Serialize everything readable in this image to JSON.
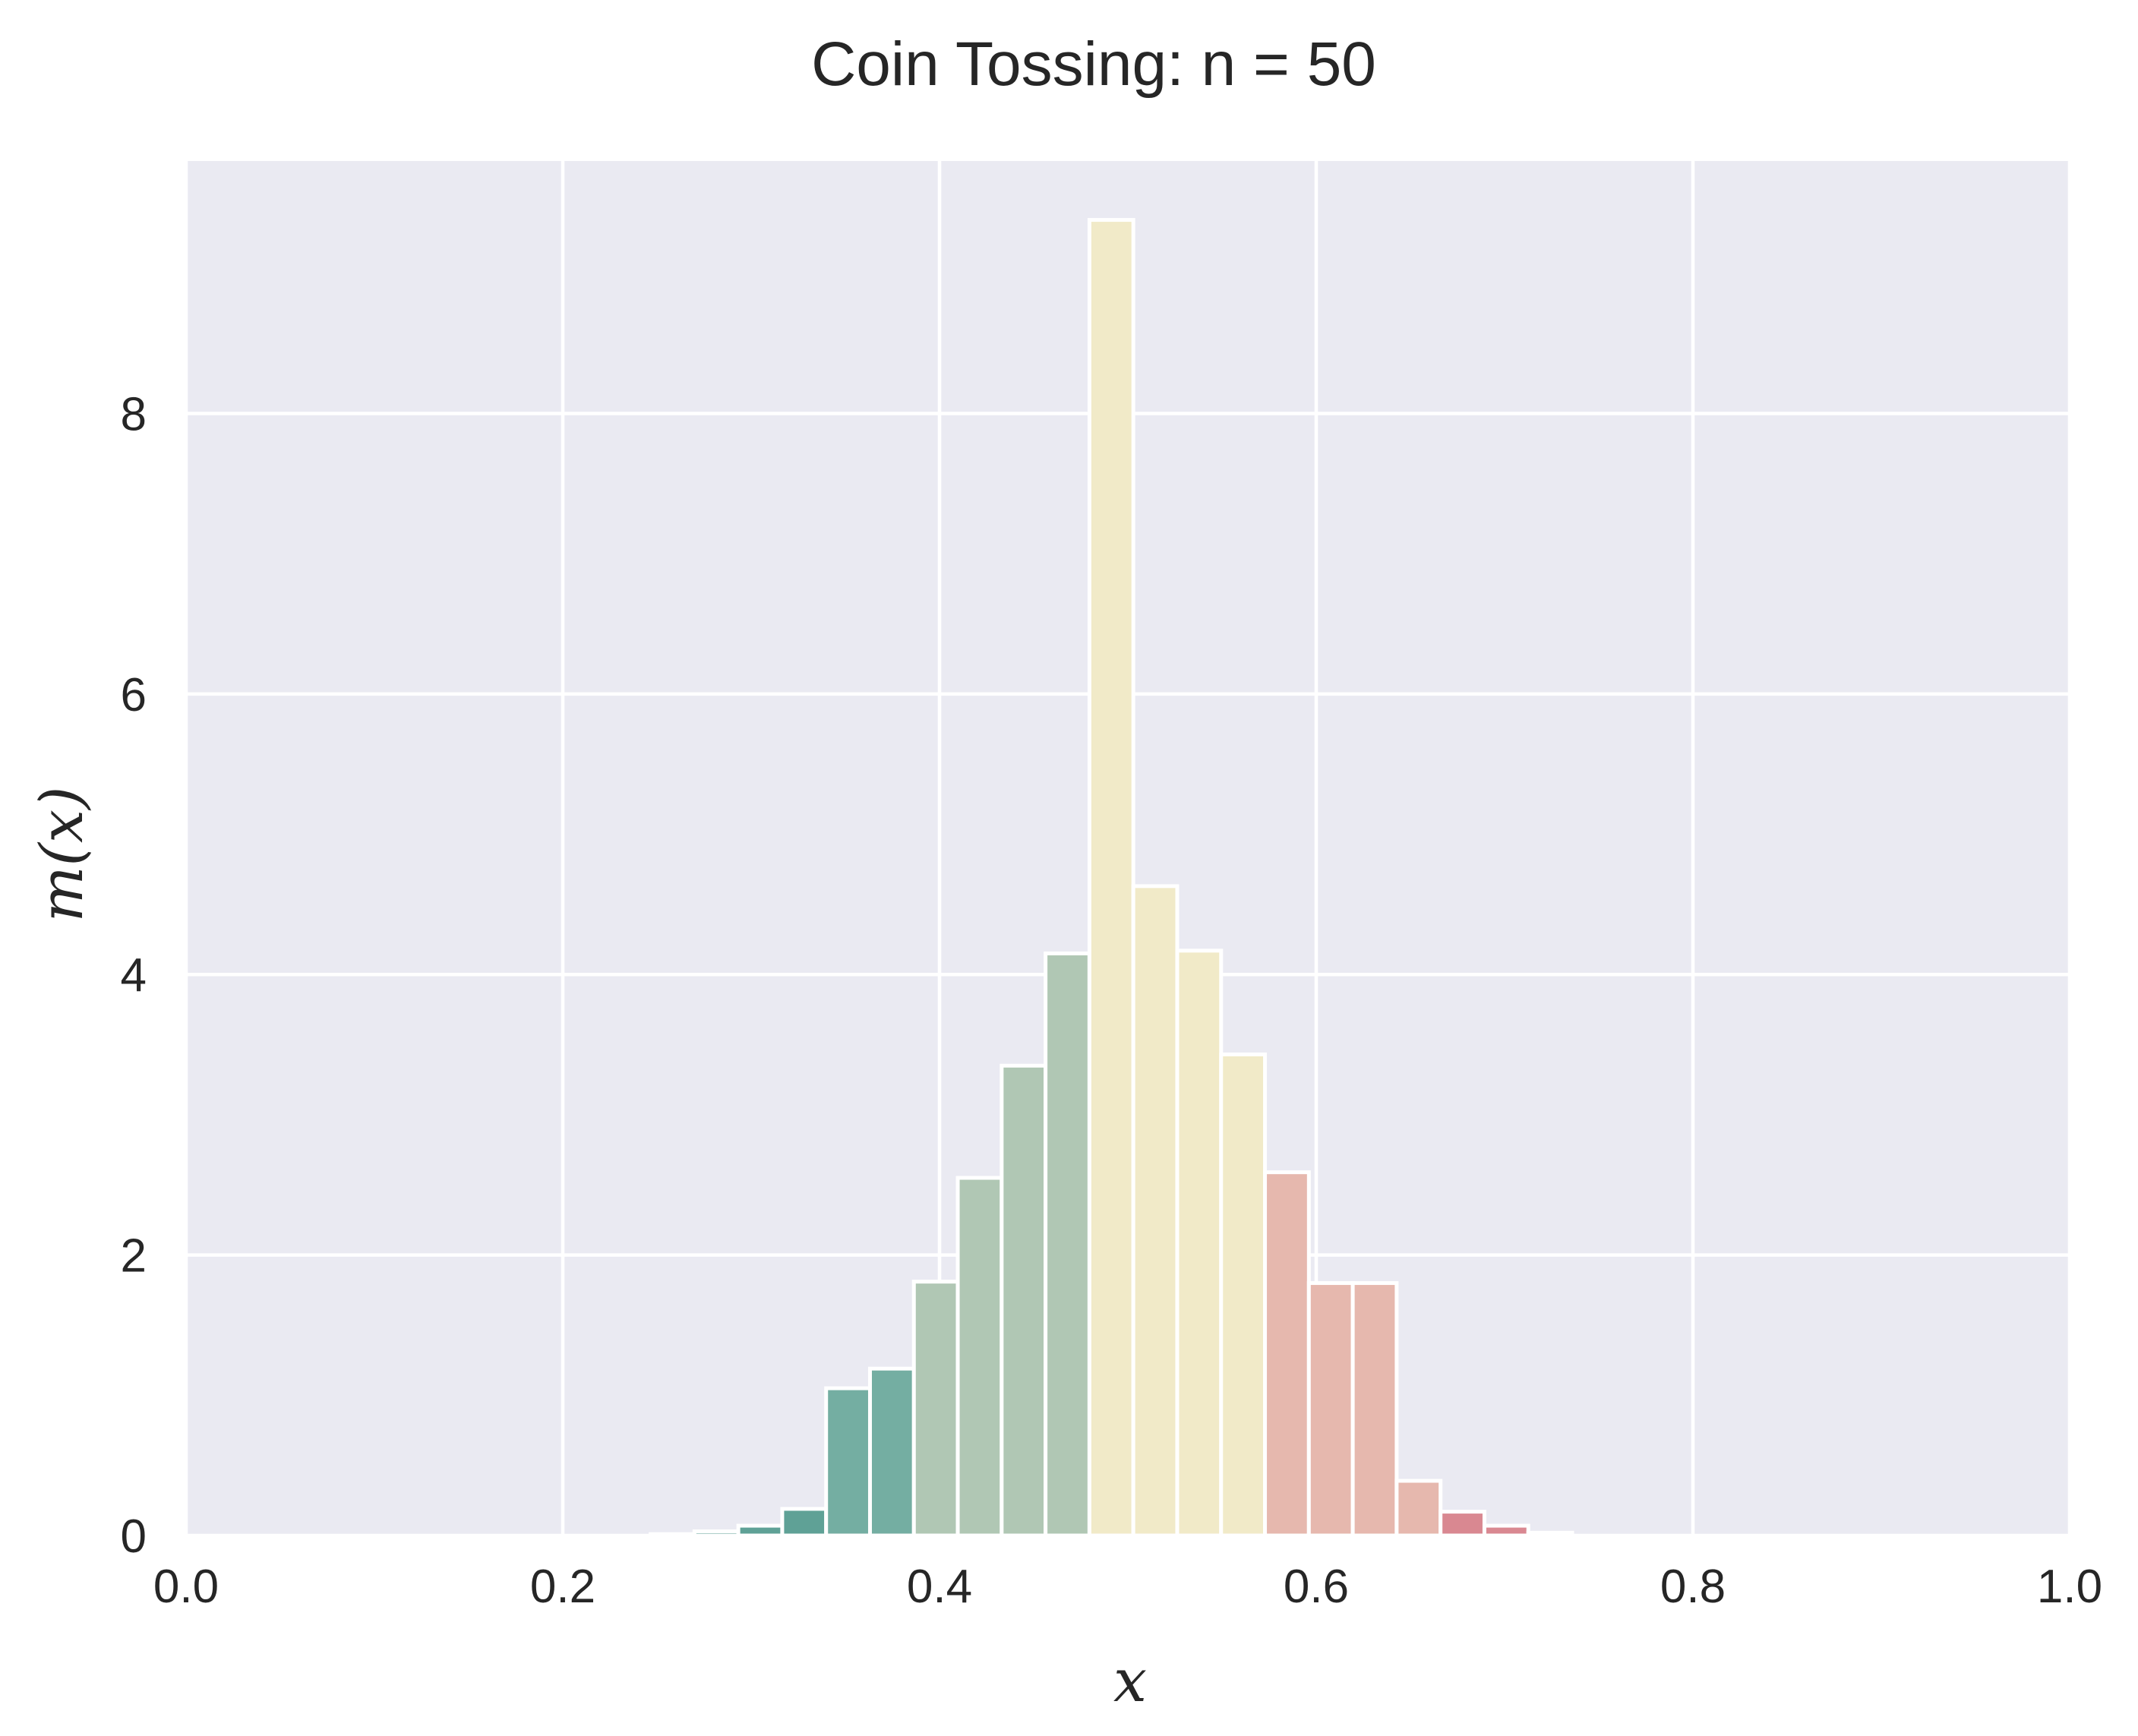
{
  "chart_data": {
    "type": "bar",
    "title": "Coin Tossing: n = 50",
    "xlabel": "x",
    "ylabel": "m(x)",
    "xlim": [
      0.0,
      1.0
    ],
    "ylim": [
      0,
      9.8
    ],
    "xticks": [
      0.0,
      0.2,
      0.4,
      0.6,
      0.8,
      1.0
    ],
    "xtick_labels": [
      "0.0",
      "0.2",
      "0.4",
      "0.6",
      "0.8",
      "1.0"
    ],
    "yticks": [
      0,
      2,
      4,
      6,
      8
    ],
    "ytick_labels": [
      "0",
      "2",
      "4",
      "6",
      "8"
    ],
    "grid": true,
    "background": "#EAEAF2",
    "bin_width": 0.0233,
    "bins": [
      {
        "x0": 0.2233,
        "x1": 0.2466,
        "value": 0.0,
        "color": "#5FA196"
      },
      {
        "x0": 0.2466,
        "x1": 0.2699,
        "value": 0.01,
        "color": "#5FA196"
      },
      {
        "x0": 0.2699,
        "x1": 0.2932,
        "value": 0.03,
        "color": "#5FA196"
      },
      {
        "x0": 0.2932,
        "x1": 0.3165,
        "value": 0.07,
        "color": "#5FA196"
      },
      {
        "x0": 0.3165,
        "x1": 0.3398,
        "value": 0.19,
        "color": "#5FA196"
      },
      {
        "x0": 0.3398,
        "x1": 0.3631,
        "value": 1.05,
        "color": "#74AEA2"
      },
      {
        "x0": 0.3631,
        "x1": 0.3864,
        "value": 1.19,
        "color": "#74AEA2"
      },
      {
        "x0": 0.3864,
        "x1": 0.4097,
        "value": 1.81,
        "color": "#B0C7B4"
      },
      {
        "x0": 0.4097,
        "x1": 0.433,
        "value": 2.55,
        "color": "#B0C7B4"
      },
      {
        "x0": 0.433,
        "x1": 0.4563,
        "value": 3.35,
        "color": "#B0C7B4"
      },
      {
        "x0": 0.4563,
        "x1": 0.4796,
        "value": 4.15,
        "color": "#B0C7B4"
      },
      {
        "x0": 0.4796,
        "x1": 0.5029,
        "value": 9.38,
        "color": "#F1EAC8"
      },
      {
        "x0": 0.5029,
        "x1": 0.5262,
        "value": 4.63,
        "color": "#F1EAC8"
      },
      {
        "x0": 0.5262,
        "x1": 0.5495,
        "value": 4.17,
        "color": "#F1EAC8"
      },
      {
        "x0": 0.5495,
        "x1": 0.5728,
        "value": 3.43,
        "color": "#F1EAC8"
      },
      {
        "x0": 0.5728,
        "x1": 0.5961,
        "value": 2.59,
        "color": "#E6B8AE"
      },
      {
        "x0": 0.5961,
        "x1": 0.6194,
        "value": 1.8,
        "color": "#E6B8AE"
      },
      {
        "x0": 0.6194,
        "x1": 0.6427,
        "value": 1.8,
        "color": "#E6B8AE"
      },
      {
        "x0": 0.6427,
        "x1": 0.666,
        "value": 0.39,
        "color": "#E6B8AE"
      },
      {
        "x0": 0.666,
        "x1": 0.6893,
        "value": 0.17,
        "color": "#D98891"
      },
      {
        "x0": 0.6893,
        "x1": 0.7126,
        "value": 0.07,
        "color": "#D98891"
      },
      {
        "x0": 0.7126,
        "x1": 0.7359,
        "value": 0.02,
        "color": "#D98891"
      },
      {
        "x0": 0.7359,
        "x1": 0.7592,
        "value": 0.0,
        "color": "#D98891"
      },
      {
        "x0": 0.7592,
        "x1": 0.7825,
        "value": 0.0,
        "color": "#D98891"
      }
    ]
  }
}
